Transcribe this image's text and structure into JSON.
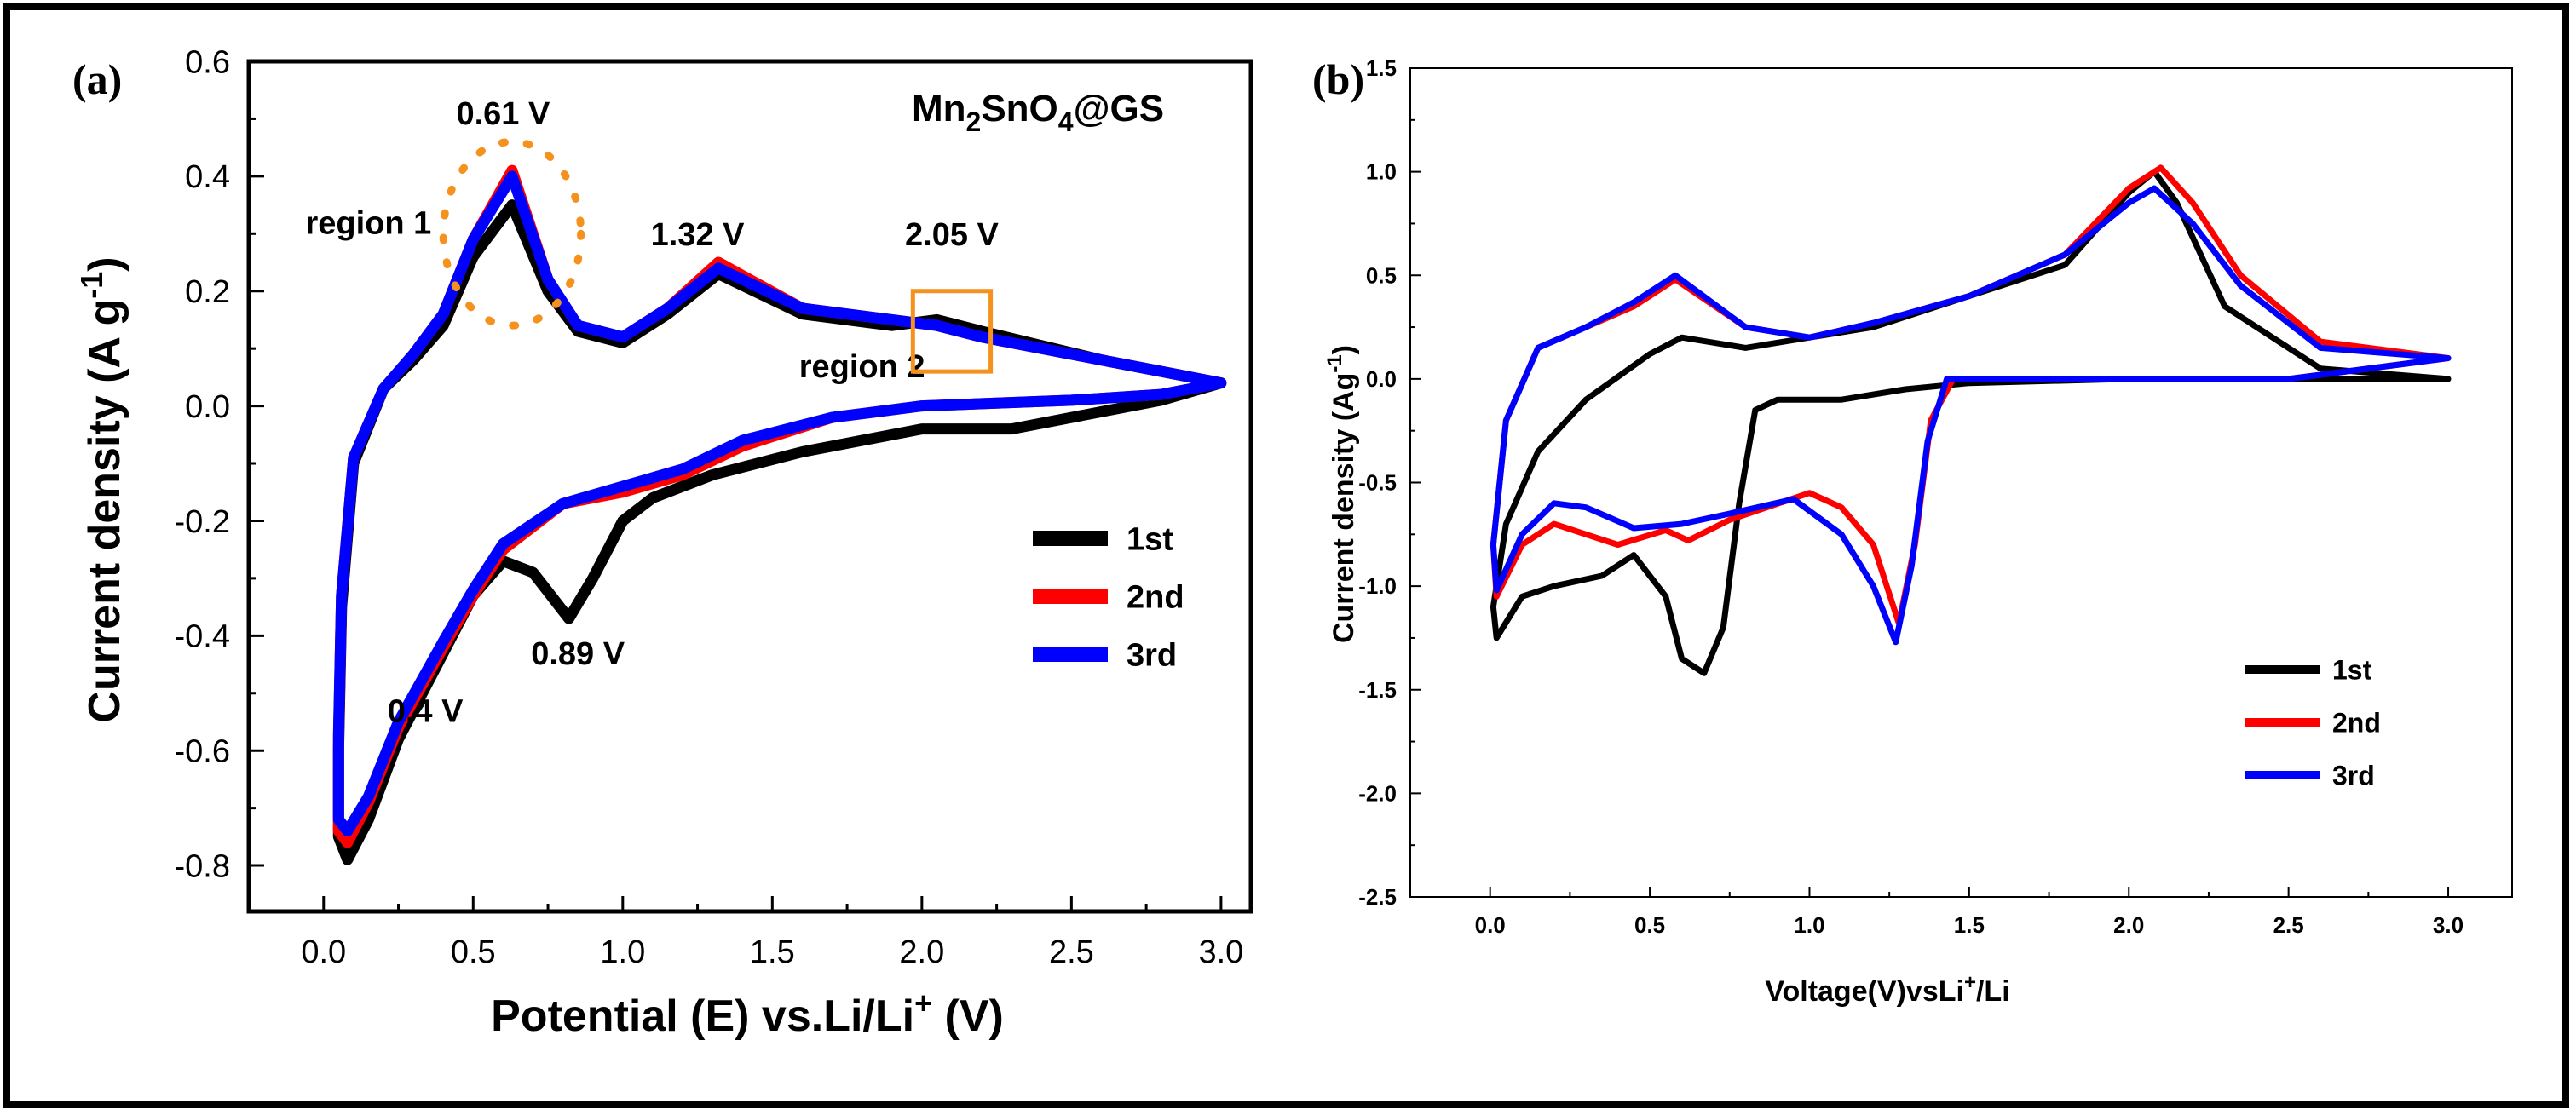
{
  "chart_data": [
    {
      "panel_label": "(a)",
      "type": "line",
      "title": "Mn2SnO4@GS",
      "title_parts": {
        "base": "Mn",
        "sub1": "2",
        "mid": "SnO",
        "sub2": "4",
        "tail": "@GS"
      },
      "xlabel": "Potential (E) vs.Li/Li+ (V)",
      "xlabel_parts": {
        "pre": "Potential (E) vs.Li/Li",
        "sup": "+",
        "post": " (V)"
      },
      "ylabel": "Current density (A g-1)",
      "ylabel_parts": {
        "pre": "Current density (A g",
        "sup": "-1",
        "post": ")"
      },
      "xlim": [
        -0.25,
        3.1
      ],
      "ylim": [
        -0.88,
        0.6
      ],
      "xticks": [
        "0.0",
        "0.5",
        "1.0",
        "1.5",
        "2.0",
        "2.5",
        "3.0"
      ],
      "yticks": [
        "0.6",
        "0.4",
        "0.2",
        "0.0",
        "-0.2",
        "-0.4",
        "-0.6",
        "-0.8"
      ],
      "series": [
        {
          "name": "1st",
          "color": "#000000",
          "points": [
            [
              3.0,
              0.04
            ],
            [
              2.6,
              0.08
            ],
            [
              2.2,
              0.13
            ],
            [
              2.05,
              0.15
            ],
            [
              1.9,
              0.14
            ],
            [
              1.6,
              0.16
            ],
            [
              1.32,
              0.23
            ],
            [
              1.15,
              0.16
            ],
            [
              1.0,
              0.11
            ],
            [
              0.85,
              0.13
            ],
            [
              0.75,
              0.2
            ],
            [
              0.63,
              0.35
            ],
            [
              0.5,
              0.26
            ],
            [
              0.4,
              0.14
            ],
            [
              0.3,
              0.08
            ],
            [
              0.2,
              0.03
            ],
            [
              0.1,
              -0.1
            ],
            [
              0.06,
              -0.35
            ],
            [
              0.05,
              -0.6
            ],
            [
              0.05,
              -0.75
            ],
            [
              0.08,
              -0.79
            ],
            [
              0.15,
              -0.72
            ],
            [
              0.25,
              -0.58
            ],
            [
              0.4,
              -0.43
            ],
            [
              0.5,
              -0.33
            ],
            [
              0.6,
              -0.27
            ],
            [
              0.7,
              -0.29
            ],
            [
              0.82,
              -0.37
            ],
            [
              0.9,
              -0.3
            ],
            [
              1.0,
              -0.2
            ],
            [
              1.1,
              -0.16
            ],
            [
              1.3,
              -0.12
            ],
            [
              1.6,
              -0.08
            ],
            [
              2.0,
              -0.04
            ],
            [
              2.3,
              -0.04
            ],
            [
              2.5,
              -0.02
            ],
            [
              2.8,
              0.01
            ],
            [
              3.0,
              0.04
            ]
          ]
        },
        {
          "name": "2nd",
          "color": "#ff0000",
          "points": [
            [
              3.0,
              0.04
            ],
            [
              2.6,
              0.08
            ],
            [
              2.2,
              0.12
            ],
            [
              2.05,
              0.14
            ],
            [
              1.9,
              0.15
            ],
            [
              1.6,
              0.17
            ],
            [
              1.32,
              0.25
            ],
            [
              1.15,
              0.17
            ],
            [
              1.0,
              0.12
            ],
            [
              0.85,
              0.14
            ],
            [
              0.75,
              0.22
            ],
            [
              0.63,
              0.41
            ],
            [
              0.5,
              0.29
            ],
            [
              0.4,
              0.16
            ],
            [
              0.3,
              0.09
            ],
            [
              0.2,
              0.03
            ],
            [
              0.1,
              -0.09
            ],
            [
              0.06,
              -0.33
            ],
            [
              0.05,
              -0.58
            ],
            [
              0.05,
              -0.74
            ],
            [
              0.08,
              -0.76
            ],
            [
              0.15,
              -0.69
            ],
            [
              0.25,
              -0.56
            ],
            [
              0.4,
              -0.42
            ],
            [
              0.5,
              -0.33
            ],
            [
              0.6,
              -0.25
            ],
            [
              0.8,
              -0.17
            ],
            [
              1.0,
              -0.15
            ],
            [
              1.2,
              -0.12
            ],
            [
              1.4,
              -0.07
            ],
            [
              1.7,
              -0.02
            ],
            [
              2.0,
              0.0
            ],
            [
              2.5,
              0.01
            ],
            [
              2.8,
              0.02
            ],
            [
              3.0,
              0.04
            ]
          ]
        },
        {
          "name": "3rd",
          "color": "#0000ff",
          "points": [
            [
              3.0,
              0.04
            ],
            [
              2.6,
              0.08
            ],
            [
              2.2,
              0.12
            ],
            [
              2.05,
              0.14
            ],
            [
              1.9,
              0.15
            ],
            [
              1.6,
              0.17
            ],
            [
              1.32,
              0.24
            ],
            [
              1.15,
              0.17
            ],
            [
              1.0,
              0.12
            ],
            [
              0.85,
              0.14
            ],
            [
              0.75,
              0.22
            ],
            [
              0.63,
              0.4
            ],
            [
              0.5,
              0.29
            ],
            [
              0.4,
              0.16
            ],
            [
              0.3,
              0.09
            ],
            [
              0.2,
              0.03
            ],
            [
              0.1,
              -0.09
            ],
            [
              0.06,
              -0.33
            ],
            [
              0.05,
              -0.57
            ],
            [
              0.05,
              -0.72
            ],
            [
              0.08,
              -0.74
            ],
            [
              0.15,
              -0.68
            ],
            [
              0.25,
              -0.55
            ],
            [
              0.4,
              -0.41
            ],
            [
              0.5,
              -0.32
            ],
            [
              0.6,
              -0.24
            ],
            [
              0.8,
              -0.17
            ],
            [
              1.0,
              -0.14
            ],
            [
              1.2,
              -0.11
            ],
            [
              1.4,
              -0.06
            ],
            [
              1.7,
              -0.02
            ],
            [
              2.0,
              0.0
            ],
            [
              2.5,
              0.01
            ],
            [
              2.8,
              0.02
            ],
            [
              3.0,
              0.04
            ]
          ]
        }
      ],
      "annotations": [
        {
          "text": "0.61 V",
          "x": 0.6,
          "y": 0.49
        },
        {
          "text": "region 1",
          "x": 0.15,
          "y": 0.3
        },
        {
          "text": "1.32 V",
          "x": 1.25,
          "y": 0.28
        },
        {
          "text": "2.05 V",
          "x": 2.1,
          "y": 0.28
        },
        {
          "text": "region 2",
          "x": 1.8,
          "y": 0.05
        },
        {
          "text": "0.89 V",
          "x": 0.85,
          "y": -0.45
        },
        {
          "text": "0.4 V",
          "x": 0.34,
          "y": -0.55
        }
      ],
      "highlight_box": {
        "x0": 1.97,
        "x1": 2.23,
        "y0": 0.06,
        "y1": 0.2,
        "color": "#f5921e"
      },
      "highlight_circle": {
        "cx": 0.63,
        "cy": 0.3,
        "rx": 0.23,
        "ry": 0.16,
        "color": "#f5921e"
      },
      "legend_position": "bottom-right"
    },
    {
      "panel_label": "(b)",
      "type": "line",
      "xlabel": "Voltage(V)vsLi+/Li",
      "xlabel_parts": {
        "pre": "Voltage(V)vsLi",
        "sup": "+",
        "post": "/Li"
      },
      "ylabel": "Current density (Ag-1)",
      "ylabel_parts": {
        "pre": "Current density (Ag",
        "sup": "-1",
        "post": ")"
      },
      "xlim": [
        -0.25,
        3.2
      ],
      "ylim": [
        -2.5,
        1.5
      ],
      "xticks": [
        "0.0",
        "0.5",
        "1.0",
        "1.5",
        "2.0",
        "2.5",
        "3.0"
      ],
      "yticks": [
        "1.5",
        "1.0",
        "0.5",
        "0.0",
        "-0.5",
        "-1.0",
        "-1.5",
        "-2.0",
        "-2.5"
      ],
      "series": [
        {
          "name": "1st",
          "color": "#000000",
          "points": [
            [
              3.0,
              0.0
            ],
            [
              2.6,
              0.05
            ],
            [
              2.3,
              0.35
            ],
            [
              2.15,
              0.85
            ],
            [
              2.08,
              1.0
            ],
            [
              2.0,
              0.9
            ],
            [
              1.8,
              0.55
            ],
            [
              1.5,
              0.4
            ],
            [
              1.2,
              0.25
            ],
            [
              1.0,
              0.2
            ],
            [
              0.8,
              0.15
            ],
            [
              0.6,
              0.2
            ],
            [
              0.5,
              0.12
            ],
            [
              0.3,
              -0.1
            ],
            [
              0.15,
              -0.35
            ],
            [
              0.05,
              -0.7
            ],
            [
              0.01,
              -1.1
            ],
            [
              0.02,
              -1.25
            ],
            [
              0.1,
              -1.05
            ],
            [
              0.2,
              -1.0
            ],
            [
              0.35,
              -0.95
            ],
            [
              0.45,
              -0.85
            ],
            [
              0.55,
              -1.05
            ],
            [
              0.6,
              -1.35
            ],
            [
              0.67,
              -1.42
            ],
            [
              0.73,
              -1.2
            ],
            [
              0.78,
              -0.6
            ],
            [
              0.83,
              -0.15
            ],
            [
              0.9,
              -0.1
            ],
            [
              1.1,
              -0.1
            ],
            [
              1.3,
              -0.05
            ],
            [
              1.5,
              -0.02
            ],
            [
              2.0,
              0.0
            ],
            [
              2.5,
              0.0
            ],
            [
              3.0,
              0.0
            ]
          ]
        },
        {
          "name": "2nd",
          "color": "#ff0000",
          "points": [
            [
              3.0,
              0.1
            ],
            [
              2.6,
              0.18
            ],
            [
              2.35,
              0.5
            ],
            [
              2.2,
              0.85
            ],
            [
              2.1,
              1.02
            ],
            [
              2.0,
              0.92
            ],
            [
              1.8,
              0.6
            ],
            [
              1.5,
              0.4
            ],
            [
              1.2,
              0.27
            ],
            [
              1.0,
              0.2
            ],
            [
              0.8,
              0.25
            ],
            [
              0.58,
              0.48
            ],
            [
              0.45,
              0.35
            ],
            [
              0.3,
              0.25
            ],
            [
              0.15,
              0.15
            ],
            [
              0.05,
              -0.2
            ],
            [
              0.01,
              -0.8
            ],
            [
              0.02,
              -1.05
            ],
            [
              0.1,
              -0.8
            ],
            [
              0.2,
              -0.7
            ],
            [
              0.3,
              -0.75
            ],
            [
              0.4,
              -0.8
            ],
            [
              0.55,
              -0.73
            ],
            [
              0.62,
              -0.78
            ],
            [
              0.75,
              -0.68
            ],
            [
              1.0,
              -0.55
            ],
            [
              1.1,
              -0.62
            ],
            [
              1.2,
              -0.8
            ],
            [
              1.28,
              -1.18
            ],
            [
              1.33,
              -0.8
            ],
            [
              1.38,
              -0.2
            ],
            [
              1.45,
              0.0
            ],
            [
              2.0,
              0.0
            ],
            [
              2.5,
              0.0
            ],
            [
              3.0,
              0.1
            ]
          ]
        },
        {
          "name": "3rd",
          "color": "#0000ff",
          "points": [
            [
              3.0,
              0.1
            ],
            [
              2.6,
              0.15
            ],
            [
              2.35,
              0.45
            ],
            [
              2.2,
              0.75
            ],
            [
              2.08,
              0.92
            ],
            [
              2.0,
              0.85
            ],
            [
              1.8,
              0.6
            ],
            [
              1.5,
              0.4
            ],
            [
              1.2,
              0.27
            ],
            [
              1.0,
              0.2
            ],
            [
              0.8,
              0.25
            ],
            [
              0.58,
              0.5
            ],
            [
              0.45,
              0.37
            ],
            [
              0.3,
              0.25
            ],
            [
              0.15,
              0.15
            ],
            [
              0.05,
              -0.2
            ],
            [
              0.01,
              -0.8
            ],
            [
              0.02,
              -1.02
            ],
            [
              0.1,
              -0.75
            ],
            [
              0.2,
              -0.6
            ],
            [
              0.3,
              -0.62
            ],
            [
              0.45,
              -0.72
            ],
            [
              0.6,
              -0.7
            ],
            [
              0.75,
              -0.65
            ],
            [
              0.95,
              -0.58
            ],
            [
              1.1,
              -0.75
            ],
            [
              1.2,
              -1.0
            ],
            [
              1.27,
              -1.27
            ],
            [
              1.32,
              -0.9
            ],
            [
              1.37,
              -0.3
            ],
            [
              1.43,
              0.0
            ],
            [
              2.0,
              0.0
            ],
            [
              2.5,
              0.0
            ],
            [
              3.0,
              0.1
            ]
          ]
        }
      ],
      "legend_position": "bottom-right"
    }
  ]
}
